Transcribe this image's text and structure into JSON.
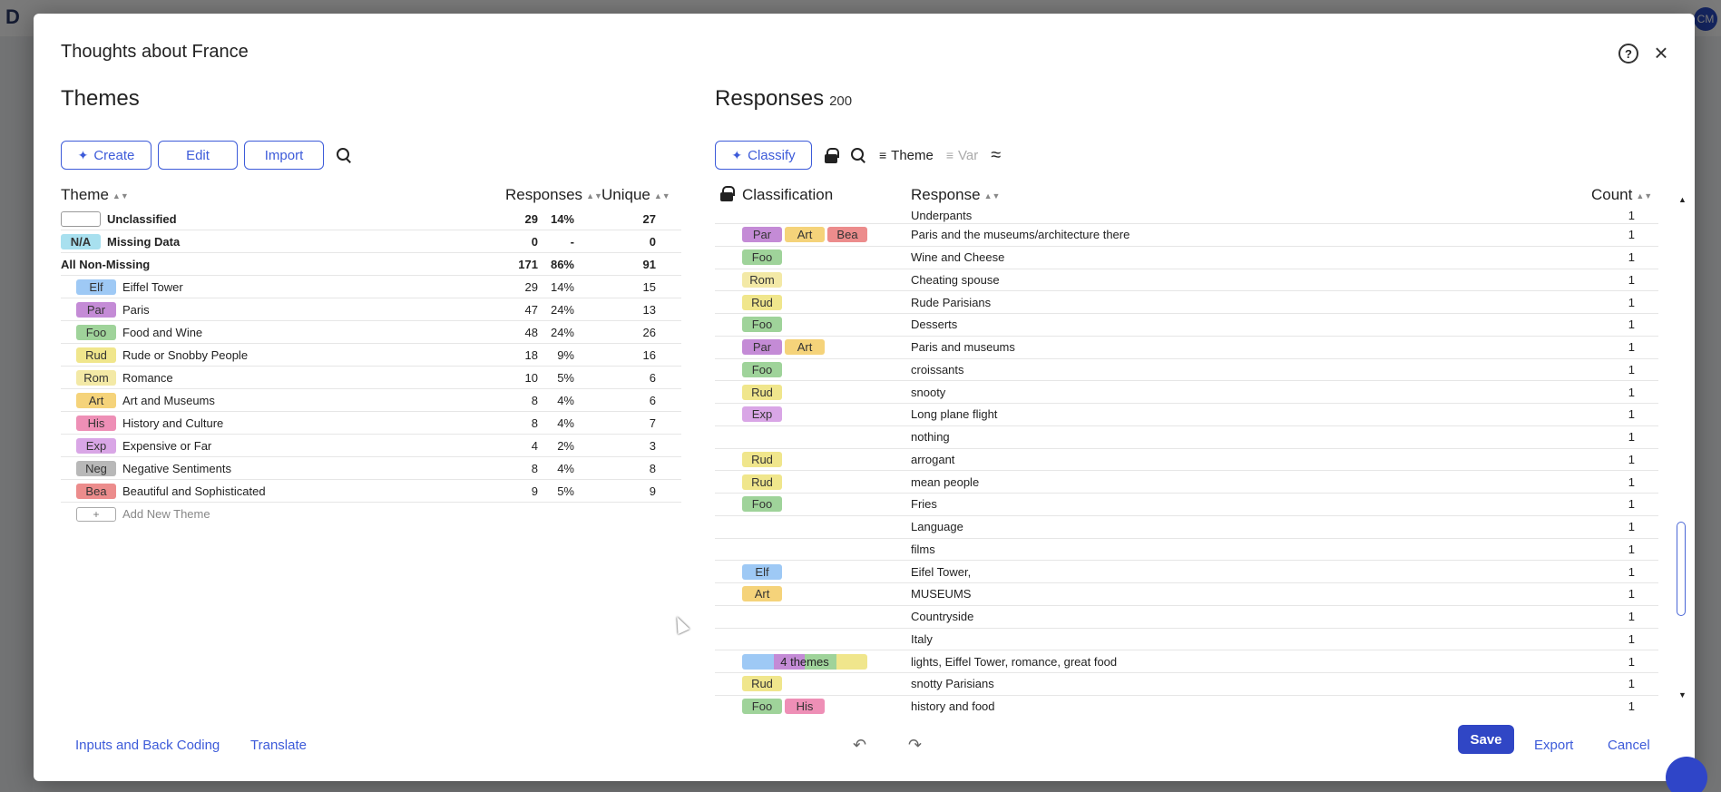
{
  "colors": {
    "accent": "#3d5bd9",
    "Elf": "#9ec9f5",
    "Par": "#c48bd6",
    "Foo": "#9fd39a",
    "Rud": "#f0e68c",
    "Rom": "#f3e9a6",
    "Art": "#f5d37a",
    "His": "#ee8fb6",
    "Exp": "#d9a6e6",
    "Neg": "#b8b8b8",
    "Bea": "#ec8c8c",
    "NA": "#a8e0ef"
  },
  "modal": {
    "title": "Thoughts about France"
  },
  "themes": {
    "title": "Themes",
    "toolbar": {
      "create": "Create",
      "edit": "Edit",
      "import": "Import"
    },
    "columns": {
      "theme": "Theme",
      "responses": "Responses",
      "unique": "Unique"
    },
    "summary_rows": [
      {
        "chip": "",
        "name": "Unclassified",
        "count": "29",
        "pct": "14%",
        "unique": "27"
      },
      {
        "chip": "N/A",
        "name": "Missing Data",
        "count": "0",
        "pct": "-",
        "unique": "0"
      },
      {
        "chip": null,
        "name": "All Non-Missing",
        "count": "171",
        "pct": "86%",
        "unique": "91"
      }
    ],
    "rows": [
      {
        "chip": "Elf",
        "name": "Eiffel Tower",
        "count": "29",
        "pct": "14%",
        "unique": "15"
      },
      {
        "chip": "Par",
        "name": "Paris",
        "count": "47",
        "pct": "24%",
        "unique": "13"
      },
      {
        "chip": "Foo",
        "name": "Food and Wine",
        "count": "48",
        "pct": "24%",
        "unique": "26"
      },
      {
        "chip": "Rud",
        "name": "Rude or Snobby People",
        "count": "18",
        "pct": "9%",
        "unique": "16"
      },
      {
        "chip": "Rom",
        "name": "Romance",
        "count": "10",
        "pct": "5%",
        "unique": "6"
      },
      {
        "chip": "Art",
        "name": "Art and Museums",
        "count": "8",
        "pct": "4%",
        "unique": "6"
      },
      {
        "chip": "His",
        "name": "History and Culture",
        "count": "8",
        "pct": "4%",
        "unique": "7"
      },
      {
        "chip": "Exp",
        "name": "Expensive or Far",
        "count": "4",
        "pct": "2%",
        "unique": "3"
      },
      {
        "chip": "Neg",
        "name": "Negative Sentiments",
        "count": "8",
        "pct": "4%",
        "unique": "8"
      },
      {
        "chip": "Bea",
        "name": "Beautiful and Sophisticated",
        "count": "9",
        "pct": "5%",
        "unique": "9"
      }
    ],
    "add_new": "Add New Theme",
    "add_symbol": "+"
  },
  "responses": {
    "title": "Responses",
    "total": "200",
    "toolbar": {
      "classify": "Classify",
      "theme": "Theme",
      "var": "Var"
    },
    "columns": {
      "classification": "Classification",
      "response": "Response",
      "count": "Count"
    },
    "rows": [
      {
        "chips": [],
        "text": "Underpants",
        "count": "1"
      },
      {
        "chips": [
          "Par",
          "Art",
          "Bea"
        ],
        "text": "Paris and the museums/architecture there",
        "count": "1"
      },
      {
        "chips": [
          "Foo"
        ],
        "text": "Wine and Cheese",
        "count": "1"
      },
      {
        "chips": [
          "Rom"
        ],
        "text": "Cheating spouse",
        "count": "1"
      },
      {
        "chips": [
          "Rud"
        ],
        "text": "Rude Parisians",
        "count": "1"
      },
      {
        "chips": [
          "Foo"
        ],
        "text": "Desserts",
        "count": "1"
      },
      {
        "chips": [
          "Par",
          "Art"
        ],
        "text": "Paris and museums",
        "count": "1"
      },
      {
        "chips": [
          "Foo"
        ],
        "text": "croissants",
        "count": "1"
      },
      {
        "chips": [
          "Rud"
        ],
        "text": "snooty",
        "count": "1"
      },
      {
        "chips": [
          "Exp"
        ],
        "text": "Long plane flight",
        "count": "1"
      },
      {
        "chips": [],
        "text": "nothing",
        "count": "1"
      },
      {
        "chips": [
          "Rud"
        ],
        "text": "arrogant",
        "count": "1"
      },
      {
        "chips": [
          "Rud"
        ],
        "text": "mean people",
        "count": "1"
      },
      {
        "chips": [
          "Foo"
        ],
        "text": "Fries",
        "count": "1"
      },
      {
        "chips": [],
        "text": "Language",
        "count": "1"
      },
      {
        "chips": [],
        "text": "films",
        "count": "1"
      },
      {
        "chips": [
          "Elf"
        ],
        "text": "Eifel Tower,",
        "count": "1"
      },
      {
        "chips": [
          "Art"
        ],
        "text": "MUSEUMS",
        "count": "1"
      },
      {
        "chips": [],
        "text": "Countryside",
        "count": "1"
      },
      {
        "chips": [],
        "text": "Italy",
        "count": "1"
      },
      {
        "multi": "4 themes",
        "multi_colors": [
          "Elf",
          "Par",
          "Foo",
          "Rud"
        ],
        "text": "lights, Eiffel Tower, romance, great food",
        "count": "1"
      },
      {
        "chips": [
          "Rud"
        ],
        "text": "snotty Parisians",
        "count": "1"
      },
      {
        "chips": [
          "Foo",
          "His"
        ],
        "text": "history and food",
        "count": "1"
      }
    ]
  },
  "footer": {
    "inputs_back_coding": "Inputs and Back Coding",
    "translate": "Translate",
    "save": "Save",
    "export": "Export",
    "cancel": "Cancel"
  }
}
